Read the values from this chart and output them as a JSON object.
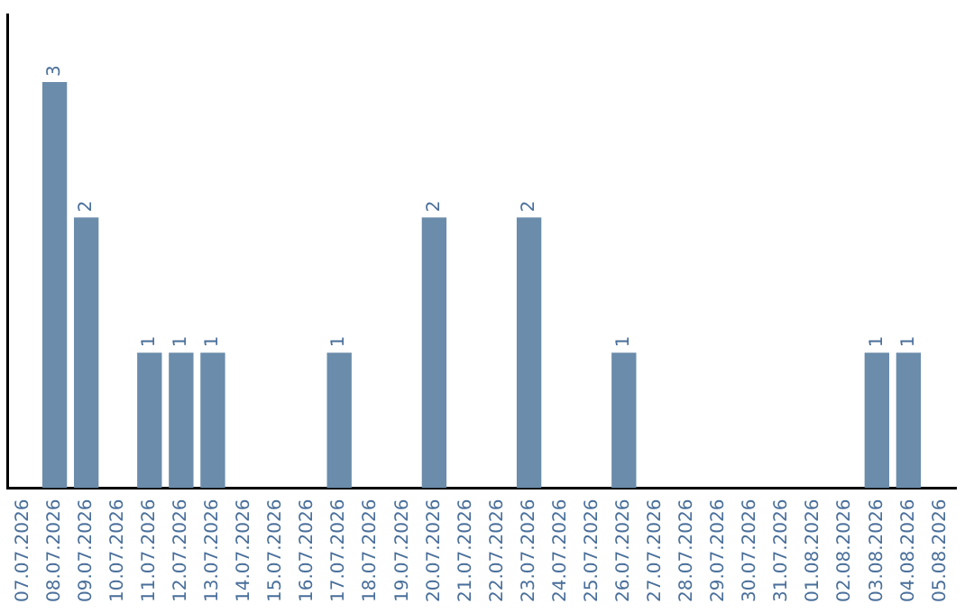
{
  "chart_data": {
    "type": "bar",
    "categories": [
      "07.07.2026",
      "08.07.2026",
      "09.07.2026",
      "10.07.2026",
      "11.07.2026",
      "12.07.2026",
      "13.07.2026",
      "14.07.2026",
      "15.07.2026",
      "16.07.2026",
      "17.07.2026",
      "18.07.2026",
      "19.07.2026",
      "20.07.2026",
      "21.07.2026",
      "22.07.2026",
      "23.07.2026",
      "24.07.2026",
      "25.07.2026",
      "26.07.2026",
      "27.07.2026",
      "28.07.2026",
      "29.07.2026",
      "30.07.2026",
      "31.07.2026",
      "01.08.2026",
      "02.08.2026",
      "03.08.2026",
      "04.08.2026",
      "05.08.2026"
    ],
    "values": [
      null,
      3,
      2,
      null,
      1,
      1,
      1,
      null,
      null,
      null,
      1,
      null,
      null,
      2,
      null,
      null,
      2,
      null,
      null,
      1,
      null,
      null,
      null,
      null,
      null,
      null,
      null,
      1,
      1,
      null
    ],
    "color": "#6b8cab",
    "data_labels": true,
    "grid": false,
    "legend": false,
    "tick_labels": "x"
  }
}
